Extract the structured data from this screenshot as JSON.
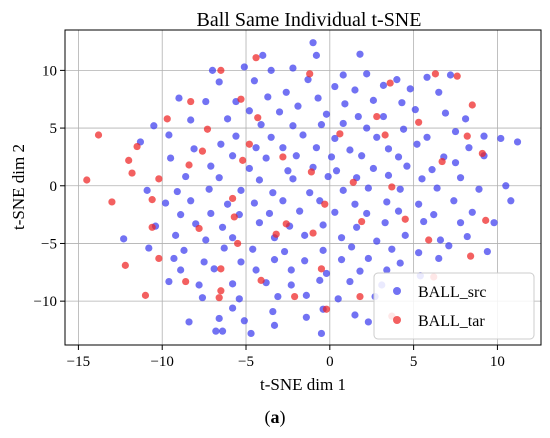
{
  "caption": {
    "open": "(",
    "letter": "a",
    "close": ")"
  },
  "chart_data": {
    "type": "scatter",
    "title": "Ball Same Individual t-SNE",
    "xlabel": "t-SNE dim 1",
    "ylabel": "t-SNE dim 2",
    "xlim": [
      -15.8,
      12.6
    ],
    "ylim": [
      -13.8,
      13.5
    ],
    "xticks": [
      -15,
      -10,
      -5,
      0,
      5,
      10
    ],
    "xtick_labels": [
      "−15",
      "−10",
      "−5",
      "0",
      "5",
      "10"
    ],
    "yticks": [
      -10,
      -5,
      0,
      5,
      10
    ],
    "ytick_labels": [
      "−10",
      "−5",
      "0",
      "5",
      "10"
    ],
    "grid": true,
    "legend_position": "lower-right",
    "series": [
      {
        "name": "BALL_src",
        "color": "#3b3bef",
        "points": [
          [
            -1,
            12.4
          ],
          [
            -7,
            10
          ],
          [
            -3.5,
            10
          ],
          [
            -4,
            11.3
          ],
          [
            1.8,
            11.4
          ],
          [
            -0.8,
            11.3
          ],
          [
            -5.1,
            10.3
          ],
          [
            -2.2,
            10.2
          ],
          [
            0.8,
            9.6
          ],
          [
            2.2,
            9.7
          ],
          [
            4,
            9.2
          ],
          [
            5.8,
            9.4
          ],
          [
            7.2,
            9.6
          ],
          [
            -6.6,
            9
          ],
          [
            -4.5,
            9.1
          ],
          [
            -1.3,
            9.2
          ],
          [
            3.2,
            8.7
          ],
          [
            4.8,
            8.4
          ],
          [
            -2.6,
            8.1
          ],
          [
            0.3,
            8.6
          ],
          [
            1.5,
            8.3
          ],
          [
            6.5,
            8.1
          ],
          [
            -9,
            7.6
          ],
          [
            -7.4,
            7.3
          ],
          [
            -5.6,
            7.3
          ],
          [
            -3.7,
            7.7
          ],
          [
            -1.9,
            6.9
          ],
          [
            -0.7,
            7.6
          ],
          [
            0.9,
            7.1
          ],
          [
            2.6,
            7.4
          ],
          [
            4.3,
            7.2
          ],
          [
            6.9,
            6.3
          ],
          [
            -4.8,
            6.5
          ],
          [
            -3,
            6.4
          ],
          [
            -0.2,
            6.2
          ],
          [
            1.7,
            6
          ],
          [
            3.2,
            6
          ],
          [
            5.1,
            6.6
          ],
          [
            8.1,
            5.8
          ],
          [
            -8.3,
            5.7
          ],
          [
            -6.1,
            5.8
          ],
          [
            -4.1,
            5.3
          ],
          [
            -2.2,
            5.2
          ],
          [
            -0.5,
            5.3
          ],
          [
            0.8,
            5.4
          ],
          [
            2.2,
            5
          ],
          [
            4.4,
            4.9
          ],
          [
            7.5,
            4.7
          ],
          [
            9.2,
            4.3
          ],
          [
            -10.5,
            5.2
          ],
          [
            -9.6,
            4.4
          ],
          [
            -5.6,
            4.3
          ],
          [
            -3.5,
            4.2
          ],
          [
            -1.6,
            4.4
          ],
          [
            0.3,
            4.1
          ],
          [
            2.8,
            4.2
          ],
          [
            5.8,
            4.2
          ],
          [
            10.2,
            4.1
          ],
          [
            -11.3,
            3.8
          ],
          [
            -8.1,
            3.2
          ],
          [
            -6.5,
            3.6
          ],
          [
            -4.4,
            3.3
          ],
          [
            -2.8,
            3.3
          ],
          [
            -0.8,
            3.3
          ],
          [
            1.2,
            3.1
          ],
          [
            3.5,
            3.2
          ],
          [
            5.2,
            3.6
          ],
          [
            8.3,
            3.3
          ],
          [
            11.2,
            3.8
          ],
          [
            -9.5,
            2.4
          ],
          [
            -5.8,
            2.6
          ],
          [
            -3.8,
            2.4
          ],
          [
            -2,
            2.6
          ],
          [
            0.1,
            2.5
          ],
          [
            1.9,
            2.6
          ],
          [
            4.1,
            2.5
          ],
          [
            6.8,
            2.5
          ],
          [
            9.2,
            2.6
          ],
          [
            -7.1,
            1.7
          ],
          [
            -4.8,
            1.5
          ],
          [
            -2.5,
            1.3
          ],
          [
            -1,
            1.6
          ],
          [
            0.4,
            1.3
          ],
          [
            2.6,
            1.5
          ],
          [
            4.6,
            1.7
          ],
          [
            6.1,
            1.4
          ],
          [
            7.5,
            2
          ],
          [
            -8.6,
            0.8
          ],
          [
            -6.6,
            0.7
          ],
          [
            -4.2,
            0.5
          ],
          [
            -2.2,
            0.6
          ],
          [
            -0.1,
            0.8
          ],
          [
            1.6,
            0.7
          ],
          [
            3.5,
            0.9
          ],
          [
            5.5,
            0.6
          ],
          [
            7.8,
            0.7
          ],
          [
            10.5,
            0
          ],
          [
            -10.9,
            -0.4
          ],
          [
            -9.1,
            -0.5
          ],
          [
            -7.2,
            -0.3
          ],
          [
            -5.3,
            -0.4
          ],
          [
            -3.4,
            -0.6
          ],
          [
            -1.2,
            -0.6
          ],
          [
            0.8,
            -0.4
          ],
          [
            2.3,
            -0.2
          ],
          [
            4.2,
            -0.3
          ],
          [
            6.4,
            -0.2
          ],
          [
            8.9,
            -0.3
          ],
          [
            -9.8,
            -1.5
          ],
          [
            -8.3,
            -1.3
          ],
          [
            -6.1,
            -1.6
          ],
          [
            -4.5,
            -1.5
          ],
          [
            -2.8,
            -1.3
          ],
          [
            -0.6,
            -1.3
          ],
          [
            1.5,
            -1.6
          ],
          [
            3.4,
            -1.4
          ],
          [
            5.3,
            -1.6
          ],
          [
            7.4,
            -1.3
          ],
          [
            10.8,
            -1.3
          ],
          [
            -8.9,
            -2.5
          ],
          [
            -7.1,
            -2.4
          ],
          [
            -5.4,
            -2.5
          ],
          [
            -3.6,
            -2.4
          ],
          [
            -1.8,
            -2.2
          ],
          [
            0.3,
            -2.3
          ],
          [
            2.2,
            -2.4
          ],
          [
            4.1,
            -2.2
          ],
          [
            6.2,
            -2.5
          ],
          [
            8.5,
            -2.3
          ],
          [
            -10.4,
            -3.5
          ],
          [
            -8,
            -3.3
          ],
          [
            -6.4,
            -3.6
          ],
          [
            -4.2,
            -3.2
          ],
          [
            -2.4,
            -3.5
          ],
          [
            -0.4,
            -3.4
          ],
          [
            1.6,
            -3.6
          ],
          [
            3.3,
            -3.2
          ],
          [
            5.6,
            -3.1
          ],
          [
            7.8,
            -3.2
          ],
          [
            9.8,
            -3.2
          ],
          [
            -12.3,
            -4.6
          ],
          [
            -9.2,
            -4.3
          ],
          [
            -7.4,
            -4.7
          ],
          [
            -5.8,
            -4.5
          ],
          [
            -3.3,
            -4.5
          ],
          [
            -1.5,
            -4.3
          ],
          [
            0.7,
            -4.5
          ],
          [
            2.8,
            -4.8
          ],
          [
            4.5,
            -4.3
          ],
          [
            6.6,
            -4.7
          ],
          [
            8.2,
            -4.4
          ],
          [
            -10.8,
            -5.4
          ],
          [
            -8.7,
            -5.6
          ],
          [
            -6.3,
            -5.4
          ],
          [
            -4.6,
            -5.5
          ],
          [
            -2.7,
            -5.7
          ],
          [
            -0.4,
            -5.6
          ],
          [
            1.3,
            -5.3
          ],
          [
            3.7,
            -5.5
          ],
          [
            5.3,
            -5.8
          ],
          [
            7.1,
            -5.2
          ],
          [
            9.4,
            -5.7
          ],
          [
            -9.3,
            -6.3
          ],
          [
            -7.5,
            -6.6
          ],
          [
            -5.3,
            -6.6
          ],
          [
            -3.3,
            -6.4
          ],
          [
            -1.5,
            -6.5
          ],
          [
            0.7,
            -6.4
          ],
          [
            2.3,
            -6.3
          ],
          [
            4.2,
            -6.7
          ],
          [
            6.5,
            -6.3
          ],
          [
            -8.9,
            -7.3
          ],
          [
            -6.9,
            -7.2
          ],
          [
            -4.4,
            -7.3
          ],
          [
            -2.3,
            -7.3
          ],
          [
            -0.2,
            -7.6
          ],
          [
            1.8,
            -7.4
          ],
          [
            3.4,
            -7.3
          ],
          [
            5.4,
            -7.8
          ],
          [
            -9.6,
            -8.3
          ],
          [
            -7.8,
            -8.6
          ],
          [
            -5.8,
            -8.5
          ],
          [
            -3.8,
            -8.4
          ],
          [
            -2.3,
            -8.6
          ],
          [
            -0.6,
            -8.2
          ],
          [
            1.2,
            -8.3
          ],
          [
            3.1,
            -8.6
          ],
          [
            -7.6,
            -9.7
          ],
          [
            -5.4,
            -9.8
          ],
          [
            -3.1,
            -9.6
          ],
          [
            -1.4,
            -9.5
          ],
          [
            0.5,
            -9.8
          ],
          [
            2.7,
            -9.6
          ],
          [
            -5.8,
            -10.6
          ],
          [
            -3.4,
            -10.9
          ],
          [
            -0.4,
            -10.7
          ],
          [
            1.5,
            -11.2
          ],
          [
            -6.6,
            -11.5
          ],
          [
            -1.4,
            -11.4
          ],
          [
            -8.4,
            -11.8
          ],
          [
            -6.8,
            -12.6
          ],
          [
            -6.4,
            -12.6
          ],
          [
            -4.7,
            -12.8
          ],
          [
            -3.3,
            -12.1
          ],
          [
            -0.5,
            -12.8
          ],
          [
            2.3,
            -11.8
          ],
          [
            -5.1,
            -11.7
          ]
        ]
      },
      {
        "name": "BALL_tar",
        "color": "#ee2222",
        "points": [
          [
            -4.4,
            11.1
          ],
          [
            -6.5,
            10
          ],
          [
            -1.2,
            9.7
          ],
          [
            6.3,
            9.7
          ],
          [
            7.6,
            9.5
          ],
          [
            3.6,
            8.9
          ],
          [
            -8.3,
            7.3
          ],
          [
            -5.3,
            7.5
          ],
          [
            2.8,
            6
          ],
          [
            8.5,
            7
          ],
          [
            -9.7,
            5.8
          ],
          [
            -4.3,
            5.9
          ],
          [
            5.3,
            5.5
          ],
          [
            -7.3,
            4.9
          ],
          [
            0.6,
            4.5
          ],
          [
            3.3,
            4.4
          ],
          [
            8.2,
            4.3
          ],
          [
            -13.8,
            4.4
          ],
          [
            -11.5,
            3.4
          ],
          [
            -7.6,
            3
          ],
          [
            -4.8,
            3.6
          ],
          [
            9.1,
            2.8
          ],
          [
            -12,
            2.2
          ],
          [
            -5.2,
            2.2
          ],
          [
            -2.8,
            2.5
          ],
          [
            6.7,
            2.1
          ],
          [
            -8.4,
            1.8
          ],
          [
            -11.8,
            1.1
          ],
          [
            -1.1,
            1.2
          ],
          [
            1.4,
            0.3
          ],
          [
            -14.5,
            0.5
          ],
          [
            -10.2,
            0.6
          ],
          [
            3.7,
            -0.1
          ],
          [
            -13,
            -1.4
          ],
          [
            -10.6,
            -1.2
          ],
          [
            -5.8,
            -1.1
          ],
          [
            -0.3,
            -1.6
          ],
          [
            -10.6,
            -3.6
          ],
          [
            -5.7,
            -2.7
          ],
          [
            -2.6,
            -3.3
          ],
          [
            1.9,
            -3.1
          ],
          [
            4.5,
            -2.9
          ],
          [
            9.3,
            -3
          ],
          [
            -7.8,
            -3.7
          ],
          [
            -3.2,
            -4.2
          ],
          [
            -1,
            -4.1
          ],
          [
            -5.5,
            -5
          ],
          [
            5.9,
            -4.7
          ],
          [
            -10.2,
            -6.3
          ],
          [
            8.4,
            -6.1
          ],
          [
            -12.2,
            -6.9
          ],
          [
            -6.5,
            -7.2
          ],
          [
            -0.5,
            -7.2
          ],
          [
            -4.1,
            -8.2
          ],
          [
            6.2,
            -7.9
          ],
          [
            -8.6,
            -8.3
          ],
          [
            -11,
            -9.5
          ],
          [
            -6.5,
            -9.1
          ],
          [
            -2.1,
            -9.6
          ],
          [
            1.8,
            -9.6
          ],
          [
            -6.6,
            -9.7
          ],
          [
            -0.2,
            -10.7
          ],
          [
            3.7,
            -11.3
          ]
        ]
      }
    ]
  }
}
